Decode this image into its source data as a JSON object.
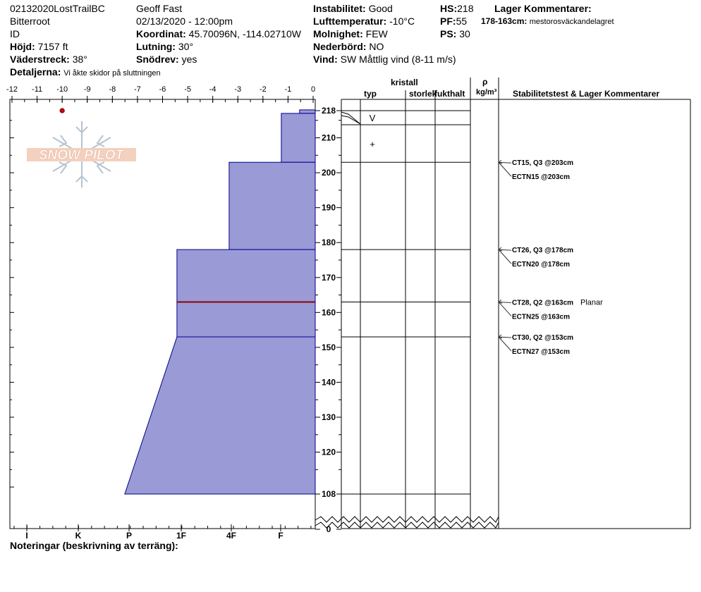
{
  "header": {
    "col1": {
      "site": "02132020LostTrailBC",
      "range": "Bitterroot",
      "state": "ID",
      "elev_label": "Höjd:",
      "elev_value": "7157 ft",
      "aspect_label": "Väderstreck:",
      "aspect_value": "38°",
      "details_label": "Detaljerna:",
      "details_value": "Vi åkte skidor på sluttningen"
    },
    "col2": {
      "observer": "Geoff Fast",
      "datetime": "02/13/2020 - 12:00pm",
      "coord_label": "Koordinat:",
      "coord_value": "45.70096N, -114.02710W",
      "slope_label": "Lutning:",
      "slope_value": "30°",
      "drift_label": "Snödrev:",
      "drift_value": "yes"
    },
    "col3": {
      "stability_label": "Instabilitet:",
      "stability_value": "Good",
      "airtemp_label": "Lufttemperatur:",
      "airtemp_value": "-10°C",
      "sky_label": "Molnighet:",
      "sky_value": "FEW",
      "precip_label": "Nederbörd:",
      "precip_value": "NO",
      "wind_label": "Vind:",
      "wind_value": "SW  Måttlig vind (8-11 m/s)"
    },
    "col4": {
      "hs_label": "HS:",
      "hs_value": "218",
      "pf_label": "PF:",
      "pf_value": "55",
      "ps_label": "PS:",
      "ps_value": "30",
      "layer_comments_label": "Lager Kommentarer:",
      "layer_comment_range": "178-163cm:",
      "layer_comment_text": "mestorosväckandelagret"
    }
  },
  "columns": {
    "kristall": "kristall",
    "typ": "typ",
    "storlek": "storlek",
    "fukthalt": "fukthalt",
    "rho": "ρ",
    "density_unit": "kg/m³",
    "stability_header": "Stabilitetstest & Lager Kommentarer"
  },
  "footer": {
    "notes_label": "Noteringar (beskrivning av terräng):"
  },
  "logo_text": "SNOW PILOT",
  "colors": {
    "hardness_fill": "#9a9ad6",
    "hardness_stroke": "#00008b",
    "weak_layer": "#8b0000",
    "temp_point": "#cc0000"
  },
  "chart_data": {
    "type": "area",
    "temp_axis": {
      "ticks": [
        "-12",
        "-11",
        "-10",
        "-9",
        "-8",
        "-7",
        "-6",
        "-5",
        "-4",
        "-3",
        "-2",
        "-1",
        "0"
      ],
      "min": -12,
      "max": 0
    },
    "hardness_axis": {
      "ticks": [
        "I",
        "K",
        "P",
        "1F",
        "4F",
        "F"
      ],
      "scale": [
        1,
        2,
        3,
        4,
        5,
        6
      ]
    },
    "height_ticks": [
      218,
      210,
      200,
      190,
      180,
      170,
      160,
      150,
      140,
      130,
      120,
      108,
      0
    ],
    "height_range": [
      108,
      220
    ],
    "temperature_points": [
      {
        "temp": -10,
        "height": 216
      }
    ],
    "layers": [
      {
        "top": 218,
        "bottom": 217,
        "hardness_top": 0.6,
        "hardness_bottom": 0.6
      },
      {
        "top": 217,
        "bottom": 203,
        "hardness_top": 1.3,
        "hardness_bottom": 1.3
      },
      {
        "top": 203,
        "bottom": 178,
        "hardness_top": 3.3,
        "hardness_bottom": 3.3
      },
      {
        "top": 178,
        "bottom": 163,
        "hardness_top": 5.3,
        "hardness_bottom": 5.3
      },
      {
        "top": 163,
        "bottom": 153,
        "hardness_top": 5.3,
        "hardness_bottom": 5.3
      },
      {
        "top": 153,
        "bottom": 108,
        "hardness_top": 5.3,
        "hardness_bottom": 7.3
      }
    ],
    "weak_layer_height": 163,
    "crystal_lines": [
      218,
      214,
      203,
      178,
      163,
      153,
      108
    ],
    "grain_symbols": [
      {
        "symbol": "V",
        "height": 216
      },
      {
        "symbol": "+",
        "height": 208.5
      }
    ],
    "tests": [
      {
        "height": 203,
        "lines": [
          "CT15, Q3 @203cm",
          "ECTN15 @203cm"
        ],
        "comment": ""
      },
      {
        "height": 178,
        "lines": [
          "CT26, Q3 @178cm",
          "ECTN20 @178cm"
        ],
        "comment": ""
      },
      {
        "height": 163,
        "lines": [
          "CT28, Q2 @163cm",
          "ECTN25 @163cm"
        ],
        "comment": "Planar"
      },
      {
        "height": 153,
        "lines": [
          "CT30, Q2 @153cm",
          "ECTN27 @153cm"
        ],
        "comment": ""
      }
    ]
  }
}
